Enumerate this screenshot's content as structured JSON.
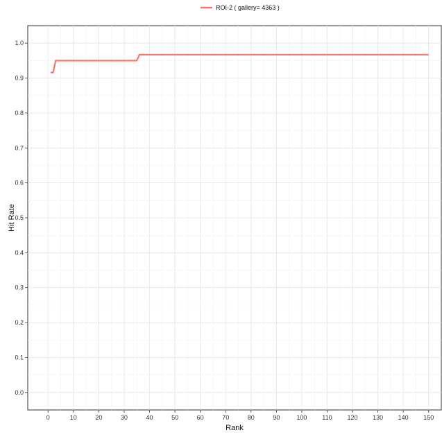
{
  "chart_data": {
    "type": "line",
    "title": "",
    "xlabel": "Rank",
    "ylabel": "Hit Rate",
    "xlim": [
      -8,
      155
    ],
    "ylim": [
      -0.05,
      1.05
    ],
    "x_ticks": [
      0,
      10,
      20,
      30,
      40,
      50,
      60,
      70,
      80,
      90,
      100,
      110,
      120,
      130,
      140,
      150
    ],
    "y_ticks": [
      0.0,
      0.1,
      0.2,
      0.3,
      0.4,
      0.5,
      0.6,
      0.7,
      0.8,
      0.9,
      1.0
    ],
    "grid": true,
    "legend_position": "top",
    "series": [
      {
        "name": "ROI-2 ( gallery= 4363 )",
        "color": "#f8766d",
        "x": [
          1,
          2,
          3,
          35,
          36,
          150
        ],
        "y": [
          0.916,
          0.916,
          0.95,
          0.95,
          0.967,
          0.967
        ]
      }
    ]
  }
}
